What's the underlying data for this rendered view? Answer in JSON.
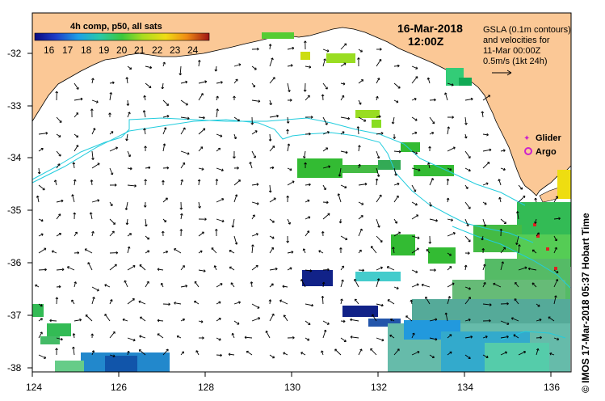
{
  "map": {
    "date": "16-Mar-2018",
    "time": "12:00Z",
    "colorbar_title": "4h comp, p50, all sats",
    "colorbar_ticks": [
      "16",
      "17",
      "18",
      "19",
      "20",
      "21",
      "22",
      "23",
      "24"
    ],
    "gsla_line1": "GSLA (0.1m contours)",
    "gsla_line2": "and velocities for",
    "gsla_line3": "11-Mar 00:00Z",
    "gsla_line4": "0.5m/s (1kt 24h)",
    "legend_glider": "Glider",
    "legend_argo": "Argo",
    "side_caption": "© IMOS 17-Mar-2018 05:37 Hobart Time",
    "lat_ticks": [
      "-32",
      "-33",
      "-34",
      "-35",
      "-36",
      "-37",
      "-38"
    ],
    "lon_ticks": [
      "124",
      "126",
      "128",
      "130",
      "132",
      "134",
      "136"
    ],
    "colors": {
      "land": "#FBC896",
      "contour": "#22CCDD",
      "glider": "#CC22CC",
      "argo": "#CC22CC"
    }
  }
}
